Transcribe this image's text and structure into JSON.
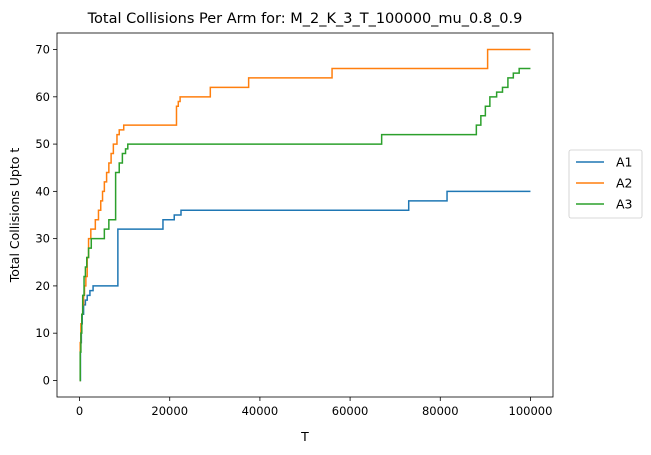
{
  "chart_data": {
    "type": "line",
    "step": true,
    "title": "Total Collisions Per Arm for: M_2_K_3_T_100000_mu_0.8_0.9",
    "xlabel": "T",
    "ylabel": "Total Collisions Upto t",
    "xlim": [
      -5000,
      105000
    ],
    "ylim": [
      -3.5,
      73.5
    ],
    "xticks": [
      0,
      20000,
      40000,
      60000,
      80000,
      100000
    ],
    "xtick_labels": [
      "0",
      "20000",
      "40000",
      "60000",
      "80000",
      "100000"
    ],
    "yticks": [
      0,
      10,
      20,
      30,
      40,
      50,
      60,
      70
    ],
    "ytick_labels": [
      "0",
      "10",
      "20",
      "30",
      "40",
      "50",
      "60",
      "70"
    ],
    "grid": false,
    "legend_position": "center-right-outside",
    "series": [
      {
        "name": "A1",
        "color": "#1f77b4",
        "x": [
          0,
          200,
          400,
          600,
          900,
          1300,
          1700,
          2300,
          3000,
          8500,
          18500,
          21000,
          22500,
          73000,
          81500,
          100000
        ],
        "y": [
          0,
          8,
          12,
          14,
          16,
          17,
          18,
          19,
          20,
          32,
          34,
          35,
          36,
          38,
          40,
          40
        ]
      },
      {
        "name": "A2",
        "color": "#ff7f0e",
        "x": [
          0,
          150,
          300,
          500,
          700,
          900,
          1100,
          1400,
          1700,
          2000,
          2500,
          3500,
          4200,
          4700,
          5100,
          5500,
          6000,
          6500,
          7000,
          7500,
          8300,
          8800,
          9800,
          10800,
          21500,
          21900,
          22300,
          29000,
          37500,
          56000,
          90500,
          100000
        ],
        "y": [
          0,
          8,
          12,
          14,
          16,
          18,
          20,
          22,
          26,
          30,
          32,
          34,
          36,
          38,
          40,
          42,
          44,
          46,
          48,
          50,
          52,
          53,
          54,
          54,
          58,
          59,
          60,
          62,
          64,
          66,
          70,
          70
        ]
      },
      {
        "name": "A3",
        "color": "#2ca02c",
        "x": [
          0,
          150,
          300,
          500,
          700,
          1000,
          1300,
          1600,
          2000,
          2600,
          3500,
          5500,
          6500,
          8000,
          8800,
          9500,
          10200,
          10700,
          67000,
          88000,
          89000,
          90000,
          91000,
          92500,
          93800,
          95000,
          96200,
          97500,
          98500,
          100000
        ],
        "y": [
          0,
          6,
          10,
          14,
          18,
          22,
          24,
          26,
          28,
          30,
          30,
          32,
          34,
          44,
          46,
          48,
          49,
          50,
          52,
          54,
          56,
          58,
          60,
          61,
          62,
          64,
          65,
          66,
          66,
          66
        ]
      }
    ]
  }
}
